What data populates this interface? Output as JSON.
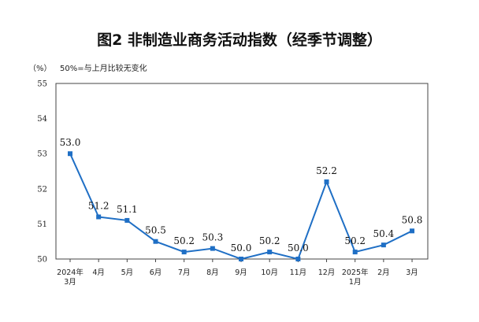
{
  "chart_data": {
    "type": "line",
    "title": "图2  非制造业商务活动指数（经季节调整）",
    "unit_label": "（%）",
    "note": "50%=与上月比较无变化",
    "categories": [
      [
        "2024年",
        "3月"
      ],
      [
        "4月"
      ],
      [
        "5月"
      ],
      [
        "6月"
      ],
      [
        "7月"
      ],
      [
        "8月"
      ],
      [
        "9月"
      ],
      [
        "10月"
      ],
      [
        "11月"
      ],
      [
        "12月"
      ],
      [
        "2025年",
        "1月"
      ],
      [
        "2月"
      ],
      [
        "3月"
      ]
    ],
    "series": [
      {
        "values": [
          53.0,
          51.2,
          51.1,
          50.5,
          50.2,
          50.3,
          50.0,
          50.2,
          50.0,
          52.2,
          50.2,
          50.4,
          50.8
        ],
        "labels": [
          "53.0",
          "51.2",
          "51.1",
          "50.5",
          "50.2",
          "50.3",
          "50.0",
          "50.2",
          "50.0",
          "52.2",
          "50.2",
          "50.4",
          "50.8"
        ],
        "color": "#1f6fc5"
      }
    ],
    "ylim": [
      50,
      55
    ],
    "yticks": [
      "50",
      "51",
      "52",
      "53",
      "54",
      "55"
    ],
    "grid": false,
    "legend": "none"
  }
}
